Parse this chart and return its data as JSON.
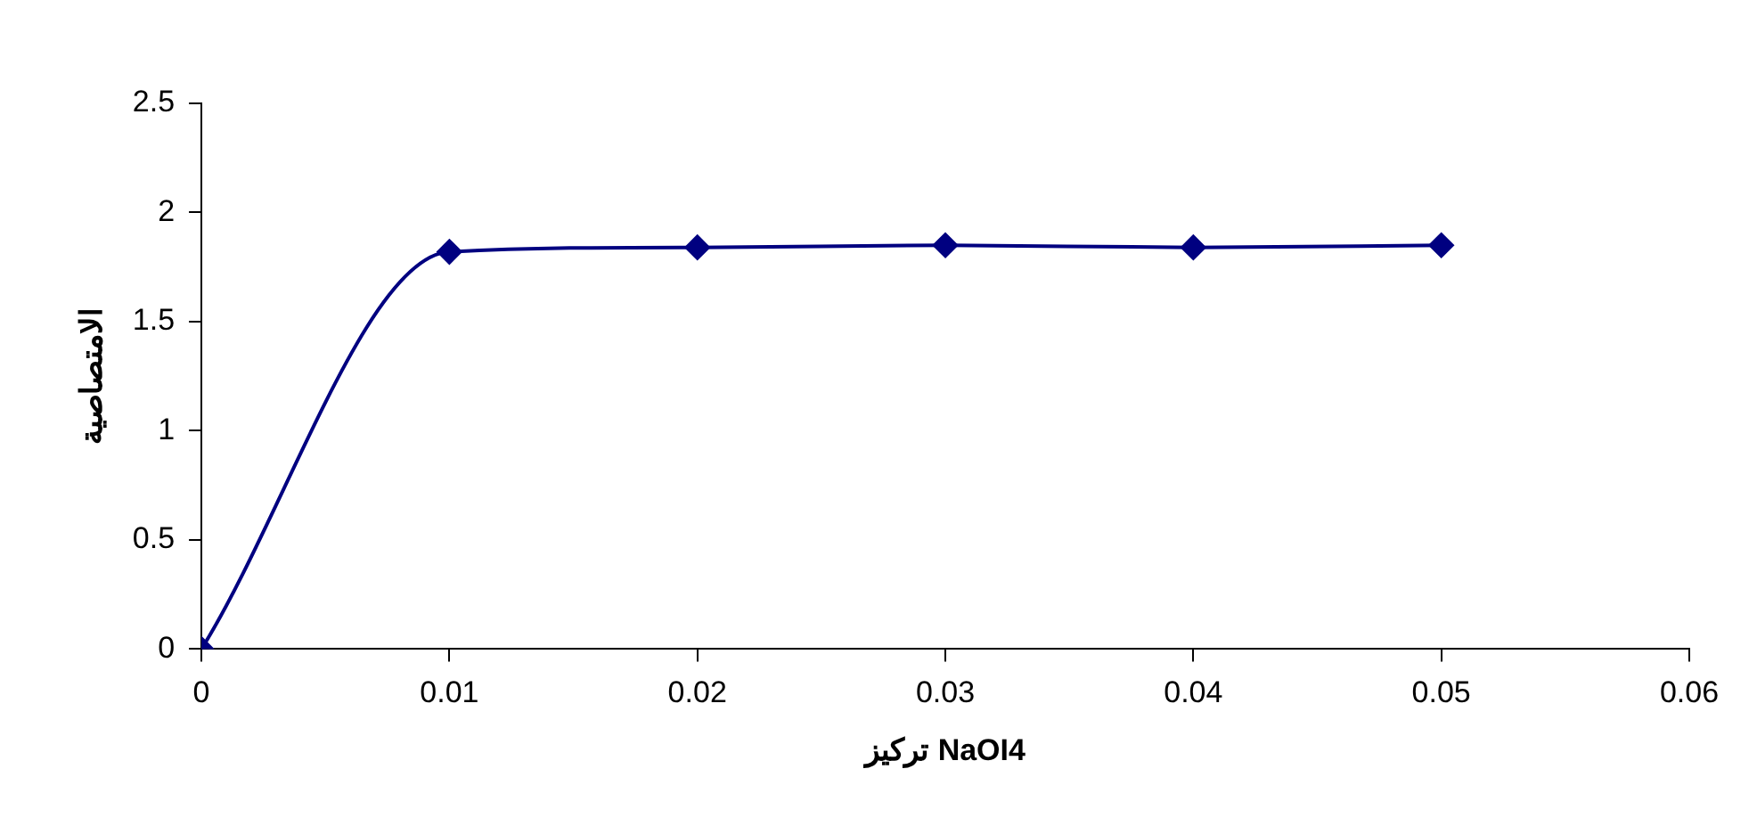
{
  "chart_data": {
    "type": "line",
    "xlabel": "تركيز NaOI4",
    "ylabel": "الامتصاصية",
    "x": [
      0,
      0.01,
      0.02,
      0.03,
      0.04,
      0.05
    ],
    "series": [
      {
        "color": "#000080",
        "values": [
          0,
          1.82,
          1.84,
          1.85,
          1.84,
          1.85
        ]
      }
    ],
    "xlim": [
      0,
      0.06
    ],
    "xticks": [
      0,
      0.01,
      0.02,
      0.03,
      0.04,
      0.05,
      0.06
    ],
    "ylim": [
      0,
      2.5
    ],
    "yticks": [
      0,
      0.5,
      1,
      1.5,
      2,
      2.5
    ],
    "grid": false,
    "legend": false,
    "marker": "diamond",
    "line_style": "solid"
  }
}
